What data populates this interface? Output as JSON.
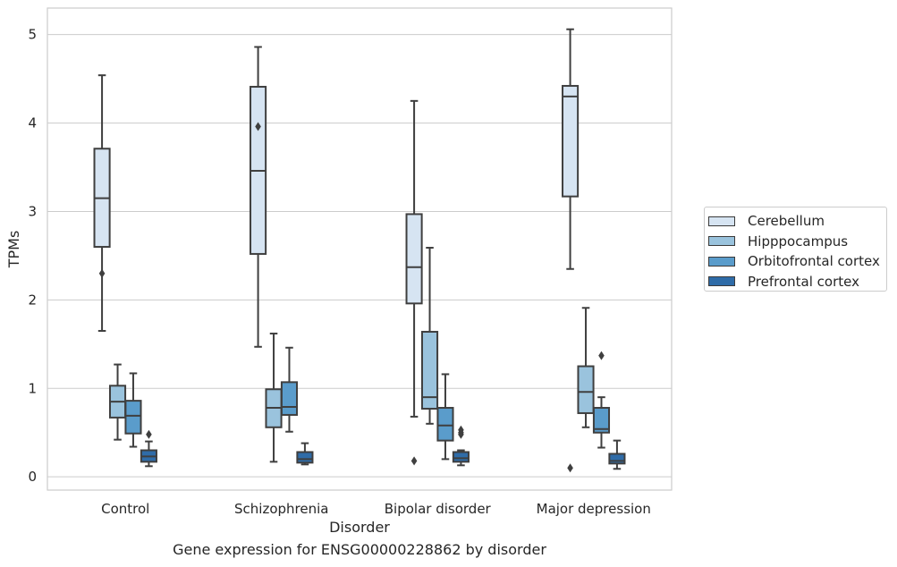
{
  "caption": "Gene expression for ENSG00000228862 by disorder",
  "chart_data": {
    "type": "box",
    "title": "",
    "xlabel": "Disorder",
    "ylabel": "TPMs",
    "ylim": [
      -0.15,
      5.3
    ],
    "yticks": [
      0,
      1,
      2,
      3,
      4,
      5
    ],
    "grid": "y",
    "legend_position": "right",
    "categories": [
      "Control",
      "Schizophrenia",
      "Bipolar disorder",
      "Major depression"
    ],
    "series": [
      {
        "name": "Cerebellum",
        "color": "#d6e4f2",
        "boxes": [
          {
            "whisker_low": 1.65,
            "q1": 2.6,
            "median": 3.15,
            "q3": 3.71,
            "whisker_high": 4.54,
            "outliers": [
              2.3
            ]
          },
          {
            "whisker_low": 1.47,
            "q1": 2.52,
            "median": 3.46,
            "q3": 4.41,
            "whisker_high": 4.86,
            "outliers": [
              3.96
            ]
          },
          {
            "whisker_low": 0.68,
            "q1": 1.96,
            "median": 2.37,
            "q3": 2.97,
            "whisker_high": 4.25,
            "outliers": [
              0.18
            ]
          },
          {
            "whisker_low": 2.35,
            "q1": 3.17,
            "median": 4.3,
            "q3": 4.42,
            "whisker_high": 5.06,
            "outliers": [
              0.1
            ]
          }
        ]
      },
      {
        "name": "Hipppocampus",
        "color": "#9ac3dd",
        "boxes": [
          {
            "whisker_low": 0.42,
            "q1": 0.67,
            "median": 0.85,
            "q3": 1.03,
            "whisker_high": 1.27,
            "outliers": []
          },
          {
            "whisker_low": 0.17,
            "q1": 0.56,
            "median": 0.78,
            "q3": 0.99,
            "whisker_high": 1.62,
            "outliers": []
          },
          {
            "whisker_low": 0.6,
            "q1": 0.77,
            "median": 0.9,
            "q3": 1.64,
            "whisker_high": 2.59,
            "outliers": []
          },
          {
            "whisker_low": 0.56,
            "q1": 0.72,
            "median": 0.96,
            "q3": 1.25,
            "whisker_high": 1.91,
            "outliers": []
          }
        ]
      },
      {
        "name": "Orbitofrontal cortex",
        "color": "#5a9ccb",
        "boxes": [
          {
            "whisker_low": 0.34,
            "q1": 0.49,
            "median": 0.69,
            "q3": 0.86,
            "whisker_high": 1.17,
            "outliers": []
          },
          {
            "whisker_low": 0.51,
            "q1": 0.7,
            "median": 0.79,
            "q3": 1.07,
            "whisker_high": 1.46,
            "outliers": []
          },
          {
            "whisker_low": 0.2,
            "q1": 0.41,
            "median": 0.58,
            "q3": 0.78,
            "whisker_high": 1.16,
            "outliers": []
          },
          {
            "whisker_low": 0.33,
            "q1": 0.5,
            "median": 0.54,
            "q3": 0.78,
            "whisker_high": 0.9,
            "outliers": [
              1.37
            ]
          }
        ]
      },
      {
        "name": "Prefrontal cortex",
        "color": "#2f6ca8",
        "boxes": [
          {
            "whisker_low": 0.12,
            "q1": 0.17,
            "median": 0.23,
            "q3": 0.3,
            "whisker_high": 0.4,
            "outliers": [
              0.48
            ]
          },
          {
            "whisker_low": 0.14,
            "q1": 0.16,
            "median": 0.2,
            "q3": 0.28,
            "whisker_high": 0.38,
            "outliers": []
          },
          {
            "whisker_low": 0.13,
            "q1": 0.17,
            "median": 0.21,
            "q3": 0.28,
            "whisker_high": 0.3,
            "outliers": [
              0.48,
              0.5,
              0.53
            ]
          },
          {
            "whisker_low": 0.09,
            "q1": 0.15,
            "median": 0.18,
            "q3": 0.26,
            "whisker_high": 0.41,
            "outliers": []
          }
        ]
      }
    ]
  }
}
